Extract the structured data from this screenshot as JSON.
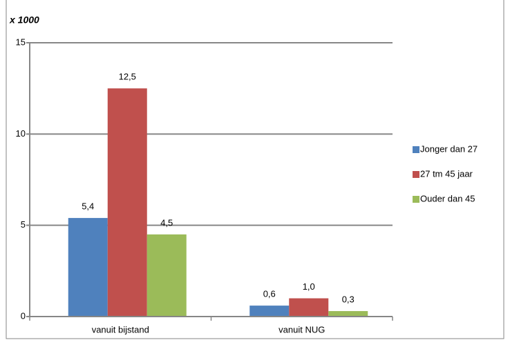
{
  "chart_data": {
    "type": "bar",
    "unit_label": "x 1000",
    "categories": [
      "vanuit bijstand",
      "vanuit NUG"
    ],
    "series": [
      {
        "name": "Jonger dan 27",
        "color": "#4f81bd",
        "values": [
          5.4,
          0.6
        ],
        "value_labels": [
          "5,4",
          "0,6"
        ]
      },
      {
        "name": "27 tm 45 jaar",
        "color": "#c0504d",
        "values": [
          12.5,
          1.0
        ],
        "value_labels": [
          "12,5",
          "1,0"
        ]
      },
      {
        "name": "Ouder dan 45",
        "color": "#9bbb59",
        "values": [
          4.5,
          0.3
        ],
        "value_labels": [
          "4,5",
          "0,3"
        ]
      }
    ],
    "ylim": [
      0,
      15
    ],
    "yticks": [
      0,
      5,
      10,
      15
    ],
    "grid": true,
    "legend": "right"
  }
}
